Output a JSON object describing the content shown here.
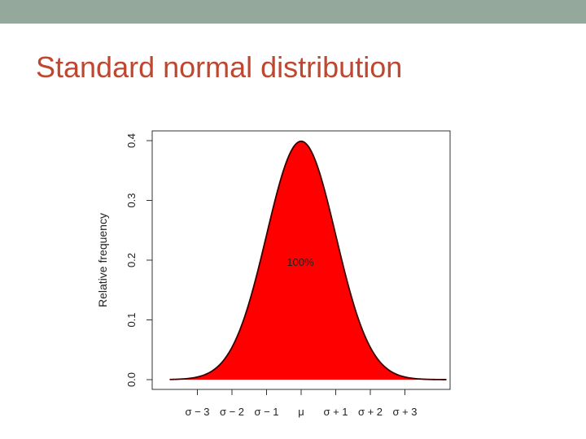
{
  "colors": {
    "top_bar": "#94a89c",
    "title": "#c0472f",
    "fill": "#ff0000",
    "curve": "#3a0000",
    "axis": "#333333"
  },
  "slide": {
    "title": "Standard normal distribution"
  },
  "chart_data": {
    "type": "area",
    "title": "",
    "xlabel": "",
    "ylabel": "Relative frequency",
    "distribution": "standard normal",
    "mean": 0,
    "sd": 1,
    "xlim": [
      -3.8,
      4.2
    ],
    "ylim": [
      0,
      0.4
    ],
    "x_ticks": [
      {
        "value": -3,
        "label": "σ − 3"
      },
      {
        "value": -2,
        "label": "σ − 2"
      },
      {
        "value": -1,
        "label": "σ − 1"
      },
      {
        "value": 0,
        "label": "μ"
      },
      {
        "value": 1,
        "label": "σ + 1"
      },
      {
        "value": 2,
        "label": "σ + 2"
      },
      {
        "value": 3,
        "label": "σ + 3"
      }
    ],
    "y_ticks": [
      {
        "value": 0.0,
        "label": "0.0"
      },
      {
        "value": 0.1,
        "label": "0.1"
      },
      {
        "value": 0.2,
        "label": "0.2"
      },
      {
        "value": 0.3,
        "label": "0.3"
      },
      {
        "value": 0.4,
        "label": "0.4"
      }
    ],
    "annotation": "100%",
    "grid": false
  }
}
